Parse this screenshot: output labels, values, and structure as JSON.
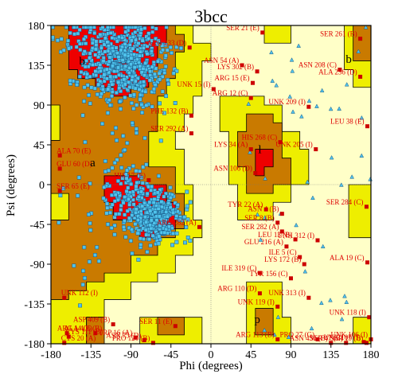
{
  "chart_data": {
    "type": "scatter",
    "title": "3bcc",
    "xlabel": "Phi (degrees)",
    "ylabel": "Psi (degrees)",
    "xlim": [
      -180,
      180
    ],
    "ylim": [
      -180,
      180
    ],
    "x_ticks": [
      -180,
      -135,
      -90,
      -45,
      0,
      45,
      90,
      135,
      180
    ],
    "y_ticks": [
      180,
      135,
      90,
      45,
      0,
      -45,
      -90,
      -135,
      -180
    ],
    "grid": false,
    "region_labels": [
      {
        "text": "b",
        "phi": -145,
        "psi": 140
      },
      {
        "text": "a",
        "phi": -133,
        "psi": 25
      },
      {
        "text": "b",
        "phi": 155,
        "psi": 142
      },
      {
        "text": "l",
        "phi": 55,
        "psi": 40
      },
      {
        "text": "p",
        "phi": 52,
        "psi": -152
      }
    ],
    "colors": {
      "core": "#ee0000",
      "allowed": "#c97a00",
      "generous": "#eeee00",
      "disallowed": "#ffffc8",
      "residue_marker": "#cc0000",
      "residue_label": "#dd0000",
      "point_fill": "#4fc3ec",
      "point_edge": "#1a5a88",
      "glycine_fill": "#4fc3ec"
    },
    "outlier_residues": [
      {
        "label": "SER 21 (E)",
        "phi": 58,
        "psi": 172
      },
      {
        "label": "ARG 233 (D)",
        "phi": -24,
        "psi": 155
      },
      {
        "label": "SER 261 (B)",
        "phi": 168,
        "psi": 165
      },
      {
        "label": "ASN 54 (A)",
        "phi": 35,
        "psi": 135
      },
      {
        "label": "LYS 302 (B)",
        "phi": 52,
        "psi": 128
      },
      {
        "label": "ARG 15 (E)",
        "phi": 47,
        "psi": 115
      },
      {
        "label": "ASN 208 (C)",
        "phi": 145,
        "psi": 130
      },
      {
        "label": "ALA 236 (D)",
        "phi": 168,
        "psi": 122
      },
      {
        "label": "UNK 15 (I)",
        "phi": 3,
        "psi": 108
      },
      {
        "label": "ARG 12 (C)",
        "phi": 45,
        "psi": 98
      },
      {
        "label": "UNK 209 (I)",
        "phi": 110,
        "psi": 88
      },
      {
        "label": "PHE 132 (B)",
        "phi": -22,
        "psi": 78
      },
      {
        "label": "LEU 38 (E)",
        "phi": 176,
        "psi": 66
      },
      {
        "label": "SER 292 (A)",
        "phi": -22,
        "psi": 58
      },
      {
        "label": "HIS 268 (C)",
        "phi": 78,
        "psi": 48
      },
      {
        "label": "LYS 34 (A)",
        "phi": 45,
        "psi": 40
      },
      {
        "label": "UNK 205 (I)",
        "phi": 118,
        "psi": 40
      },
      {
        "label": "ALA 70 (E)",
        "phi": -170,
        "psi": 33
      },
      {
        "label": "ASN 106 (D)",
        "phi": 50,
        "psi": 13
      },
      {
        "label": "GLU 60 (D)",
        "phi": -170,
        "psi": 18
      },
      {
        "label": "HIS 17 (E)",
        "phi": -70,
        "psi": 5
      },
      {
        "label": "SER 65 (E)",
        "phi": -170,
        "psi": -7
      },
      {
        "label": "TYR 22 (A)",
        "phi": 62,
        "psi": -28
      },
      {
        "label": "SER 284 (C)",
        "phi": 175,
        "psi": -25
      },
      {
        "label": "ASN 4 (B)",
        "phi": 80,
        "psi": -33
      },
      {
        "label": "SER 8 (B)",
        "phi": 75,
        "psi": -43
      },
      {
        "label": "ARG 282 (A)",
        "phi": -13,
        "psi": -48
      },
      {
        "label": "SER 282 (A)",
        "phi": 80,
        "psi": -53
      },
      {
        "label": "LEU 13 (B)",
        "phi": 95,
        "psi": -62
      },
      {
        "label": "UNK 312 (I)",
        "phi": 120,
        "psi": -63
      },
      {
        "label": "GLU 216 (A)",
        "phi": 85,
        "psi": -70
      },
      {
        "label": "ILE 5 (C)",
        "phi": 100,
        "psi": -82
      },
      {
        "label": "LYS 172 (B)",
        "phi": 105,
        "psi": -90
      },
      {
        "label": "ALA 19 (C)",
        "phi": 176,
        "psi": -88
      },
      {
        "label": "ILE 319 (C)",
        "phi": 55,
        "psi": -100
      },
      {
        "label": "TYR 156 (C)",
        "phi": 90,
        "psi": -106
      },
      {
        "label": "ARG 110 (D)",
        "phi": 55,
        "psi": -123
      },
      {
        "label": "UNK 313 (I)",
        "phi": 110,
        "psi": -128
      },
      {
        "label": "UNK 112 (I)",
        "phi": -165,
        "psi": -128
      },
      {
        "label": "UNK 119 (I)",
        "phi": 75,
        "psi": -138
      },
      {
        "label": "UNK 118 (I)",
        "phi": 178,
        "psi": -150
      },
      {
        "label": "ASP 409 (B)",
        "phi": -110,
        "psi": -158
      },
      {
        "label": "ALA 406 (B)",
        "phi": -162,
        "psi": -168
      },
      {
        "label": "ARG 14 (E)",
        "phi": -130,
        "psi": -168
      },
      {
        "label": "SER 11 (E)",
        "phi": -40,
        "psi": -160
      },
      {
        "label": "TRP 16 (A)",
        "phi": -85,
        "psi": -173
      },
      {
        "label": "CYS 111 (B)",
        "phi": -160,
        "psi": -172
      },
      {
        "label": "ARG 113 (B)",
        "phi": 75,
        "psi": -175
      },
      {
        "label": "PRO 27 (G)",
        "phi": 120,
        "psi": -175
      },
      {
        "label": "UNK 106 (I)",
        "phi": 180,
        "psi": -175
      },
      {
        "label": "ASN 75 (D)",
        "phi": -75,
        "psi": -176
      },
      {
        "label": "UNK 107 (I)",
        "phi": 172,
        "psi": -178
      },
      {
        "label": "SER 19 (B)",
        "phi": 175,
        "psi": -179
      },
      {
        "label": "CYS 20 (A)",
        "phi": -165,
        "psi": -179
      },
      {
        "label": "PRO 120 (B)",
        "phi": -65,
        "psi": -179
      },
      {
        "label": "ASN 430 (B)",
        "phi": 135,
        "psi": -179
      },
      {
        "label": "SER 47 (B)",
        "phi": 152,
        "psi": -179
      }
    ]
  }
}
